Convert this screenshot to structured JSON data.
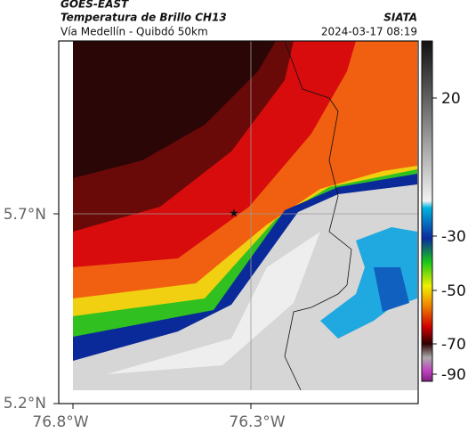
{
  "header": {
    "satellite": "GOES-EAST",
    "product": "Temperatura de Brillo CH13",
    "location": "Vía Medellín - Quibdó 50km",
    "source": "SIATA",
    "datetime": "2024-03-17 08:19"
  },
  "map": {
    "lat_labels": [
      "5.7°N",
      "5.2°N"
    ],
    "lon_labels": [
      "76.8°W",
      "76.3°W"
    ]
  },
  "colorbar": {
    "ticks": [
      20,
      -30,
      -50,
      -70,
      -90
    ]
  }
}
